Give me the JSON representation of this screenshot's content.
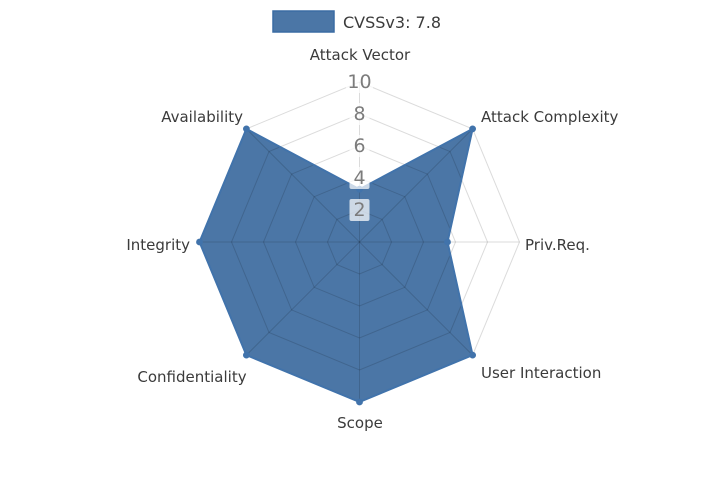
{
  "chart_data": {
    "type": "radar",
    "title": "",
    "legend": [
      {
        "label": "CVSSv3: 7.8",
        "swatch_fill": "#4B76A6",
        "swatch_edge": "#3A6CA3"
      }
    ],
    "categories": [
      "Attack Vector",
      "Attack Complexity",
      "Priv.Req.",
      "User Interaction",
      "Scope",
      "Confidentiality",
      "Integrity",
      "Availability"
    ],
    "series": [
      {
        "name": "CVSSv3: 7.8",
        "values": [
          3.3,
          10,
          5.5,
          10,
          10,
          10,
          10,
          10
        ]
      }
    ],
    "ticks": [
      "2",
      "4",
      "6",
      "8",
      "10"
    ],
    "tick_values": [
      2,
      4,
      6,
      8,
      10
    ],
    "rlim": [
      0,
      10
    ],
    "grid_shape": "polygon",
    "legend_position": "top-center",
    "colors": {
      "fill": "#4B76A6",
      "edge": "#4173AB",
      "marker": "#4173AB",
      "grid": "rgba(0,0,0,0.14)",
      "tick_text": "#7c7c7c",
      "tick_box": "rgba(255,255,255,0.72)",
      "label_text": "#3b3b3b",
      "background": "#ffffff"
    }
  }
}
